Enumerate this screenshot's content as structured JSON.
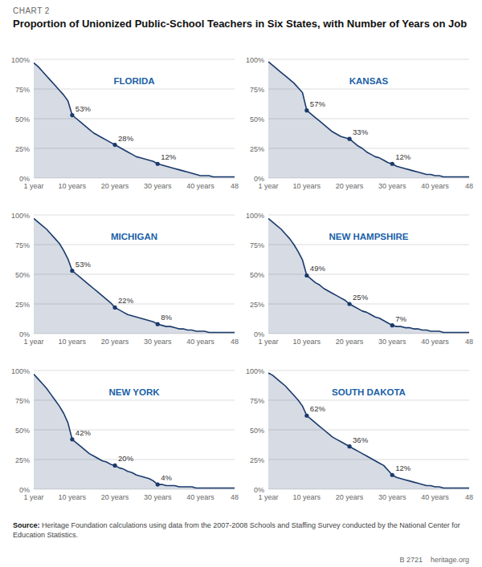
{
  "title": "Proportion of Unionized Public-School Teachers in Six States, with Number of Years on Job",
  "subtitle": "CHART 2",
  "annotations": [
    "Source:",
    " Heritage Foundation calculations using data from the 2007-2008 Schools and Staffing Survey conducted by the National Center for Education Statistics.",
    "B 2721    heritage.org"
  ],
  "chart_data": [
    {
      "type": "area",
      "title": "FLORIDA",
      "color": "#1a3a6b",
      "grid": true,
      "x": [
        1,
        2,
        3,
        4,
        5,
        6,
        7,
        8,
        9,
        10,
        11,
        12,
        13,
        14,
        15,
        16,
        17,
        18,
        19,
        20,
        21,
        22,
        23,
        24,
        25,
        26,
        27,
        28,
        29,
        30,
        31,
        32,
        33,
        34,
        35,
        36,
        37,
        38,
        39,
        40,
        41,
        42,
        43,
        44,
        45,
        46,
        47,
        48
      ],
      "values": [
        97,
        94,
        90,
        86,
        82,
        78,
        74,
        70,
        65,
        53,
        50,
        47,
        44,
        41,
        38,
        36,
        34,
        32,
        30,
        28,
        26,
        24,
        22,
        20,
        18,
        17,
        16,
        15,
        14,
        12,
        11,
        10,
        9,
        8,
        7,
        6,
        5,
        4,
        3,
        2,
        2,
        2,
        1,
        1,
        1,
        1,
        1,
        1
      ],
      "xlim": [
        1,
        48
      ],
      "xticks": [
        {
          "value": 1,
          "label": "1 year"
        },
        {
          "value": 10,
          "label": "10 years"
        },
        {
          "value": 20,
          "label": "20 years"
        },
        {
          "value": 30,
          "label": "30 years"
        },
        {
          "value": 40,
          "label": "40 years"
        },
        48
      ],
      "ylim": [
        0,
        100
      ],
      "yticks": [
        {
          "value": 0,
          "label": "0%"
        },
        {
          "value": 25,
          "label": "25%"
        },
        {
          "value": 50,
          "label": "50%"
        },
        {
          "value": 75,
          "label": "75%"
        },
        {
          "value": 100,
          "label": "100%"
        }
      ],
      "annotations": [
        {
          "x": 10,
          "value": 53,
          "label": "53%"
        },
        {
          "x": 20,
          "value": 28,
          "label": "28%"
        },
        {
          "x": 30,
          "value": 12,
          "label": "12%"
        }
      ]
    },
    {
      "type": "area",
      "title": "KANSAS",
      "color": "#1a3a6b",
      "grid": true,
      "x": [
        1,
        2,
        3,
        4,
        5,
        6,
        7,
        8,
        9,
        10,
        11,
        12,
        13,
        14,
        15,
        16,
        17,
        18,
        19,
        20,
        21,
        22,
        23,
        24,
        25,
        26,
        27,
        28,
        29,
        30,
        31,
        32,
        33,
        34,
        35,
        36,
        37,
        38,
        39,
        40,
        41,
        42,
        43,
        44,
        45,
        46,
        47,
        48
      ],
      "values": [
        98,
        95,
        92,
        89,
        86,
        83,
        80,
        76,
        72,
        57,
        54,
        51,
        48,
        45,
        42,
        39,
        37,
        35,
        34,
        33,
        30,
        27,
        25,
        22,
        20,
        18,
        17,
        15,
        13,
        12,
        10,
        9,
        8,
        7,
        6,
        5,
        4,
        3,
        3,
        2,
        2,
        1,
        1,
        1,
        1,
        1,
        1,
        1
      ],
      "xlim": [
        1,
        48
      ],
      "xticks": [
        {
          "value": 1,
          "label": "1 year"
        },
        {
          "value": 10,
          "label": "10 years"
        },
        {
          "value": 20,
          "label": "20 years"
        },
        {
          "value": 30,
          "label": "30 years"
        },
        {
          "value": 40,
          "label": "40 years"
        },
        48
      ],
      "ylim": [
        0,
        100
      ],
      "yticks": [
        {
          "value": 0,
          "label": "0%"
        },
        {
          "value": 25,
          "label": "25%"
        },
        {
          "value": 50,
          "label": "50%"
        },
        {
          "value": 75,
          "label": "75%"
        },
        {
          "value": 100,
          "label": "100%"
        }
      ],
      "annotations": [
        {
          "x": 10,
          "value": 57,
          "label": "57%"
        },
        {
          "x": 20,
          "value": 33,
          "label": "33%"
        },
        {
          "x": 30,
          "value": 12,
          "label": "12%"
        }
      ]
    },
    {
      "type": "area",
      "title": "MICHIGAN",
      "color": "#1a3a6b",
      "grid": true,
      "x": [
        1,
        2,
        3,
        4,
        5,
        6,
        7,
        8,
        9,
        10,
        11,
        12,
        13,
        14,
        15,
        16,
        17,
        18,
        19,
        20,
        21,
        22,
        23,
        24,
        25,
        26,
        27,
        28,
        29,
        30,
        31,
        32,
        33,
        34,
        35,
        36,
        37,
        38,
        39,
        40,
        41,
        42,
        43,
        44,
        45,
        46,
        47,
        48
      ],
      "values": [
        97,
        94,
        91,
        88,
        84,
        80,
        76,
        70,
        63,
        53,
        50,
        47,
        44,
        41,
        38,
        35,
        32,
        29,
        26,
        22,
        20,
        18,
        16,
        15,
        14,
        13,
        12,
        11,
        10,
        8,
        7,
        6,
        6,
        5,
        4,
        4,
        3,
        3,
        2,
        2,
        2,
        1,
        1,
        1,
        1,
        1,
        1,
        1
      ],
      "xlim": [
        1,
        48
      ],
      "xticks": [
        {
          "value": 1,
          "label": "1 year"
        },
        {
          "value": 10,
          "label": "10 years"
        },
        {
          "value": 20,
          "label": "20 years"
        },
        {
          "value": 30,
          "label": "30 years"
        },
        {
          "value": 40,
          "label": "40 years"
        },
        48
      ],
      "ylim": [
        0,
        100
      ],
      "yticks": [
        {
          "value": 0,
          "label": "0%"
        },
        {
          "value": 25,
          "label": "25%"
        },
        {
          "value": 50,
          "label": "50%"
        },
        {
          "value": 75,
          "label": "75%"
        },
        {
          "value": 100,
          "label": "100%"
        }
      ],
      "annotations": [
        {
          "x": 10,
          "value": 53,
          "label": "53%"
        },
        {
          "x": 20,
          "value": 22,
          "label": "22%"
        },
        {
          "x": 30,
          "value": 8,
          "label": "8%"
        }
      ]
    },
    {
      "type": "area",
      "title": "NEW HAMPSHIRE",
      "color": "#1a3a6b",
      "grid": true,
      "x": [
        1,
        2,
        3,
        4,
        5,
        6,
        7,
        8,
        9,
        10,
        11,
        12,
        13,
        14,
        15,
        16,
        17,
        18,
        19,
        20,
        21,
        22,
        23,
        24,
        25,
        26,
        27,
        28,
        29,
        30,
        31,
        32,
        33,
        34,
        35,
        36,
        37,
        38,
        39,
        40,
        41,
        42,
        43,
        44,
        45,
        46,
        47,
        48
      ],
      "values": [
        97,
        94,
        91,
        88,
        84,
        80,
        75,
        69,
        62,
        49,
        46,
        43,
        41,
        38,
        36,
        34,
        32,
        30,
        28,
        25,
        23,
        21,
        19,
        18,
        16,
        14,
        13,
        11,
        9,
        7,
        6,
        6,
        5,
        5,
        4,
        4,
        3,
        3,
        2,
        2,
        2,
        1,
        1,
        1,
        1,
        1,
        1,
        1
      ],
      "xlim": [
        1,
        48
      ],
      "xticks": [
        {
          "value": 1,
          "label": "1 year"
        },
        {
          "value": 10,
          "label": "10 years"
        },
        {
          "value": 20,
          "label": "20 years"
        },
        {
          "value": 30,
          "label": "30 years"
        },
        {
          "value": 40,
          "label": "40 years"
        },
        48
      ],
      "ylim": [
        0,
        100
      ],
      "yticks": [
        {
          "value": 0,
          "label": "0%"
        },
        {
          "value": 25,
          "label": "25%"
        },
        {
          "value": 50,
          "label": "50%"
        },
        {
          "value": 75,
          "label": "75%"
        },
        {
          "value": 100,
          "label": "100%"
        }
      ],
      "annotations": [
        {
          "x": 10,
          "value": 49,
          "label": "49%"
        },
        {
          "x": 20,
          "value": 25,
          "label": "25%"
        },
        {
          "x": 30,
          "value": 7,
          "label": "7%"
        }
      ]
    },
    {
      "type": "area",
      "title": "NEW YORK",
      "color": "#1a3a6b",
      "grid": true,
      "x": [
        1,
        2,
        3,
        4,
        5,
        6,
        7,
        8,
        9,
        10,
        11,
        12,
        13,
        14,
        15,
        16,
        17,
        18,
        19,
        20,
        21,
        22,
        23,
        24,
        25,
        26,
        27,
        28,
        29,
        30,
        31,
        32,
        33,
        34,
        35,
        36,
        37,
        38,
        39,
        40,
        41,
        42,
        43,
        44,
        45,
        46,
        47,
        48
      ],
      "values": [
        97,
        93,
        89,
        85,
        80,
        75,
        70,
        64,
        56,
        42,
        39,
        36,
        33,
        30,
        28,
        26,
        24,
        23,
        21,
        20,
        18,
        17,
        15,
        14,
        12,
        11,
        10,
        9,
        7,
        4,
        4,
        3,
        3,
        3,
        2,
        2,
        2,
        2,
        1,
        1,
        1,
        1,
        1,
        1,
        1,
        1,
        1,
        1
      ],
      "xlim": [
        1,
        48
      ],
      "xticks": [
        {
          "value": 1,
          "label": "1 year"
        },
        {
          "value": 10,
          "label": "10 years"
        },
        {
          "value": 20,
          "label": "20 years"
        },
        {
          "value": 30,
          "label": "30 years"
        },
        {
          "value": 40,
          "label": "40 years"
        },
        48
      ],
      "ylim": [
        0,
        100
      ],
      "yticks": [
        {
          "value": 0,
          "label": "0%"
        },
        {
          "value": 25,
          "label": "25%"
        },
        {
          "value": 50,
          "label": "50%"
        },
        {
          "value": 75,
          "label": "75%"
        },
        {
          "value": 100,
          "label": "100%"
        }
      ],
      "annotations": [
        {
          "x": 10,
          "value": 42,
          "label": "42%"
        },
        {
          "x": 20,
          "value": 20,
          "label": "20%"
        },
        {
          "x": 30,
          "value": 4,
          "label": "4%"
        }
      ]
    },
    {
      "type": "area",
      "title": "SOUTH DAKOTA",
      "color": "#1a3a6b",
      "grid": true,
      "x": [
        1,
        2,
        3,
        4,
        5,
        6,
        7,
        8,
        9,
        10,
        11,
        12,
        13,
        14,
        15,
        16,
        17,
        18,
        19,
        20,
        21,
        22,
        23,
        24,
        25,
        26,
        27,
        28,
        29,
        30,
        31,
        32,
        33,
        34,
        35,
        36,
        37,
        38,
        39,
        40,
        41,
        42,
        43,
        44,
        45,
        46,
        47,
        48
      ],
      "values": [
        98,
        96,
        93,
        90,
        87,
        83,
        79,
        75,
        70,
        62,
        59,
        56,
        53,
        50,
        47,
        44,
        42,
        40,
        38,
        36,
        34,
        32,
        30,
        28,
        26,
        24,
        22,
        20,
        16,
        12,
        10,
        9,
        8,
        7,
        6,
        5,
        4,
        3,
        3,
        2,
        2,
        1,
        1,
        1,
        1,
        1,
        1,
        1
      ],
      "xlim": [
        1,
        48
      ],
      "xticks": [
        {
          "value": 1,
          "label": "1 year"
        },
        {
          "value": 10,
          "label": "10 years"
        },
        {
          "value": 20,
          "label": "20 years"
        },
        {
          "value": 30,
          "label": "30 years"
        },
        {
          "value": 40,
          "label": "40 years"
        },
        48
      ],
      "ylim": [
        0,
        100
      ],
      "yticks": [
        {
          "value": 0,
          "label": "0%"
        },
        {
          "value": 25,
          "label": "25%"
        },
        {
          "value": 50,
          "label": "50%"
        },
        {
          "value": 75,
          "label": "75%"
        },
        {
          "value": 100,
          "label": "100%"
        }
      ],
      "annotations": [
        {
          "x": 10,
          "value": 62,
          "label": "62%"
        },
        {
          "x": 20,
          "value": 36,
          "label": "36%"
        },
        {
          "x": 30,
          "value": 12,
          "label": "12%"
        }
      ]
    }
  ]
}
